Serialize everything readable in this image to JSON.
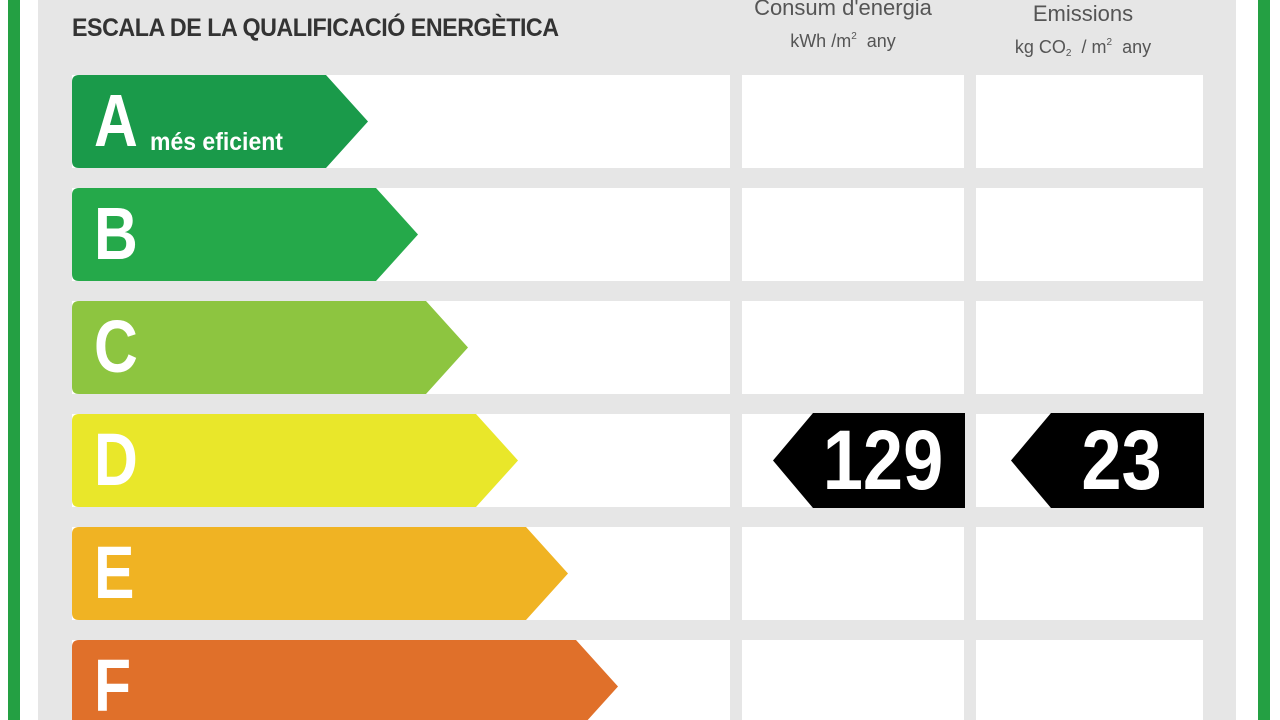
{
  "title": "ESCALA DE LA QUALIFICACIÓ ENERGÈTICA",
  "columns": {
    "energy": {
      "heading": "Consum d'energia",
      "unit_main": "kWh /m",
      "unit_sup": "2",
      "unit_tail": "any"
    },
    "emissions": {
      "heading": "Emissions",
      "unit_prefix": "kg CO",
      "unit_sub": "2",
      "unit_mid": "/ m",
      "unit_sup": "2",
      "unit_tail": "any"
    }
  },
  "ratings": [
    {
      "letter": "A",
      "sublabel": "més eficient",
      "color": "#1a9a4a"
    },
    {
      "letter": "B",
      "sublabel": "",
      "color": "#25a94a"
    },
    {
      "letter": "C",
      "sublabel": "",
      "color": "#8dc540"
    },
    {
      "letter": "D",
      "sublabel": "",
      "color": "#e9e72a"
    },
    {
      "letter": "E",
      "sublabel": "",
      "color": "#f0b323"
    },
    {
      "letter": "F",
      "sublabel": "",
      "color": "#e0702a"
    }
  ],
  "result": {
    "rating": "D",
    "energy_value": "129",
    "emissions_value": "23",
    "tag_color": "#000000"
  },
  "colors": {
    "frame_green": "#24a043",
    "panel_gray": "#e6e6e6"
  }
}
